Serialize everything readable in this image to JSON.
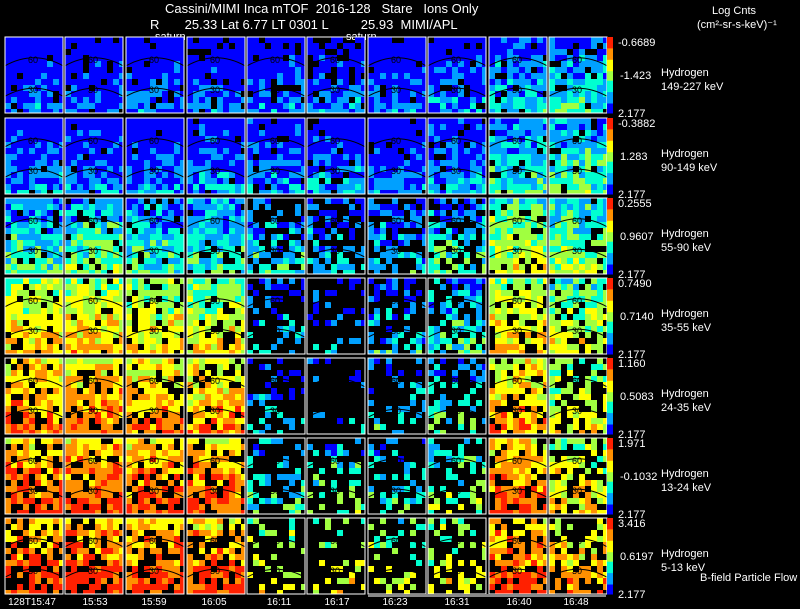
{
  "title": {
    "line1": "Cassini/MIMI Inca mTOF  2016-128   Stare   Ions Only",
    "line2": "R       25.33 Lat 6.77 LT 0301 L         25.93  MIMI/APL",
    "saturn_label_1": "saturn",
    "saturn_label_2": "saturn"
  },
  "log_units": {
    "line1": "Log Cnts",
    "line2": "(cm²-sr-s-keV)⁻¹"
  },
  "footer_note": "B-field Particle Flow",
  "time_ticks": [
    "128T15:47",
    "15:53",
    "15:59",
    "16:05",
    "16:11",
    "16:17",
    "16:23",
    "16:31",
    "16:40",
    "16:48"
  ],
  "chart_data": {
    "type": "heatmap",
    "colormap": [
      "#0000ff",
      "#00a0ff",
      "#00ffd0",
      "#a0ff40",
      "#ffff00",
      "#ff9000",
      "#ff2000"
    ],
    "panels": [
      {
        "species": "Hydrogen",
        "energy": "149-227 keV",
        "cb_max": "-0.6689",
        "cb_mid": "-1.423",
        "cb_min": "2.177",
        "lats": [
          "60",
          "30"
        ]
      },
      {
        "species": "Hydrogen",
        "energy": "90-149 keV",
        "cb_max": "-0.3882",
        "cb_mid": "1.283",
        "cb_min": "2.177",
        "lats": [
          "60",
          "30"
        ]
      },
      {
        "species": "Hydrogen",
        "energy": "55-90 keV",
        "cb_max": "0.2555",
        "cb_mid": "0.9607",
        "cb_min": "2.177",
        "lats": [
          "60",
          "30"
        ]
      },
      {
        "species": "Hydrogen",
        "energy": "35-55 keV",
        "cb_max": "0.7490",
        "cb_mid": "0.7140",
        "cb_min": "2.177",
        "lats": [
          "60",
          "30"
        ]
      },
      {
        "species": "Hydrogen",
        "energy": "24-35 keV",
        "cb_max": "1.160",
        "cb_mid": "0.5083",
        "cb_min": "2.177",
        "lats": [
          "60",
          "30"
        ]
      },
      {
        "species": "Hydrogen",
        "energy": "13-24 keV",
        "cb_max": "1.971",
        "cb_mid": "-0.1032",
        "cb_min": "2.177",
        "lats": [
          "60",
          "30"
        ]
      },
      {
        "species": "Hydrogen",
        "energy": "5-13 keV",
        "cb_max": "3.416",
        "cb_mid": "0.6197",
        "cb_min": "2.177",
        "lats": [
          "60",
          "30"
        ]
      }
    ]
  }
}
